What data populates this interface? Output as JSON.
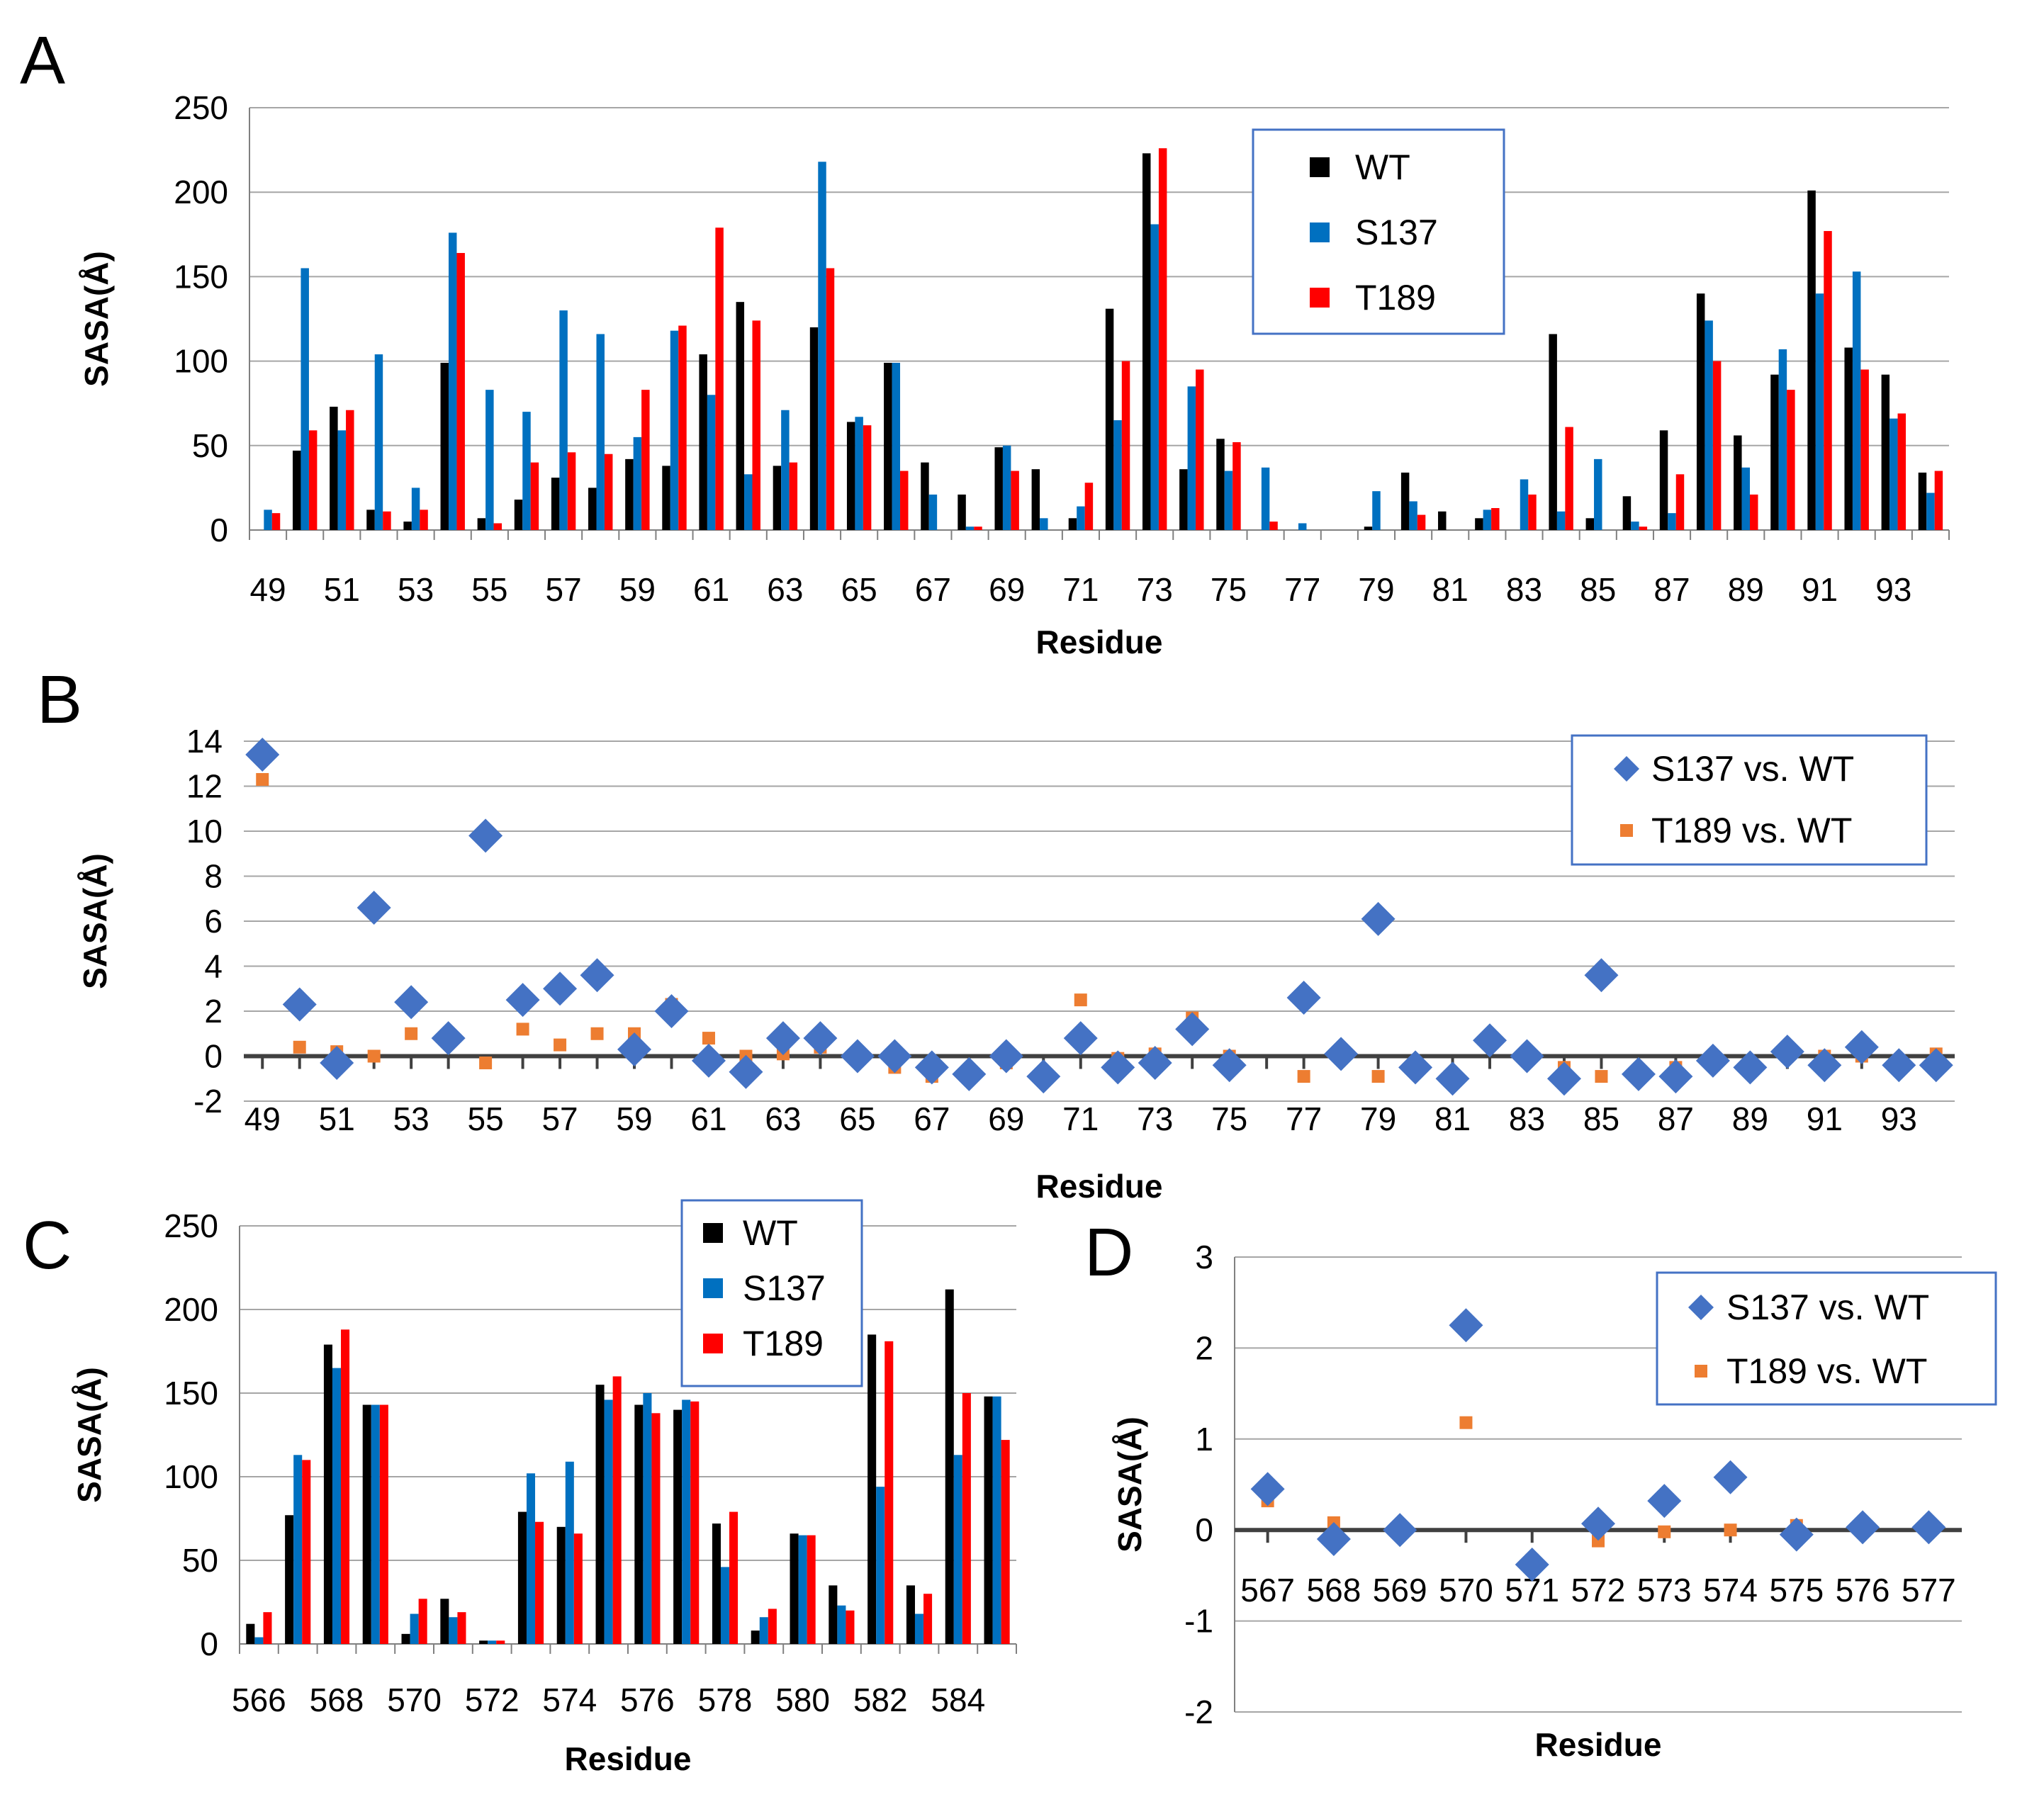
{
  "colors": {
    "WT": "#000000",
    "S137": "#0070C0",
    "T189": "#FF0000",
    "S137_vs_WT": "#4472C4",
    "T189_vs_WT": "#ED7D31",
    "gridline": "#A6A6A6",
    "legend_border": "#4472C4"
  },
  "chart_data": [
    {
      "panel": "A",
      "type": "bar",
      "xlabel": "Residue",
      "ylabel": "SASA(Å)",
      "ylim": [
        0,
        250
      ],
      "yticks": [
        0,
        50,
        100,
        150,
        200,
        250
      ],
      "xtick_labels": [
        "49",
        "51",
        "53",
        "55",
        "57",
        "59",
        "61",
        "63",
        "65",
        "67",
        "69",
        "71",
        "73",
        "75",
        "77",
        "79",
        "81",
        "83",
        "85",
        "87",
        "89",
        "91",
        "93"
      ],
      "categories": [
        49,
        50,
        51,
        52,
        53,
        54,
        55,
        56,
        57,
        58,
        59,
        60,
        61,
        62,
        63,
        64,
        65,
        66,
        67,
        68,
        69,
        70,
        71,
        72,
        73,
        74,
        75,
        76,
        77,
        78,
        79,
        80,
        81,
        82,
        83,
        84,
        85,
        86,
        87,
        88,
        89,
        90,
        91,
        92,
        93,
        94
      ],
      "legend": [
        "WT",
        "S137",
        "T189"
      ],
      "series": [
        {
          "name": "WT",
          "values": [
            0,
            47,
            73,
            12,
            5,
            99,
            7,
            18,
            31,
            25,
            42,
            38,
            104,
            135,
            38,
            120,
            64,
            99,
            40,
            21,
            49,
            36,
            7,
            131,
            223,
            36,
            54,
            0,
            0,
            0,
            2,
            34,
            11,
            7,
            0,
            116,
            7,
            20,
            59,
            140,
            56,
            92,
            201,
            108,
            92,
            34
          ]
        },
        {
          "name": "S137",
          "values": [
            12,
            155,
            59,
            104,
            25,
            176,
            83,
            70,
            130,
            116,
            55,
            118,
            80,
            33,
            71,
            218,
            67,
            99,
            21,
            2,
            50,
            7,
            14,
            65,
            181,
            85,
            35,
            37,
            4,
            0,
            23,
            17,
            0,
            12,
            30,
            11,
            42,
            5,
            10,
            124,
            37,
            107,
            140,
            153,
            66,
            22
          ]
        },
        {
          "name": "T189",
          "values": [
            10,
            59,
            71,
            11,
            12,
            164,
            4,
            40,
            46,
            45,
            83,
            121,
            179,
            124,
            40,
            155,
            62,
            35,
            0,
            2,
            35,
            0,
            28,
            100,
            226,
            95,
            52,
            5,
            0,
            0,
            0,
            9,
            0,
            13,
            21,
            61,
            0,
            2,
            33,
            100,
            21,
            83,
            177,
            95,
            69,
            35
          ]
        }
      ]
    },
    {
      "panel": "B",
      "type": "scatter",
      "xlabel": "Residue",
      "ylabel": "SASA(Å)",
      "ylim": [
        -2,
        14
      ],
      "yticks": [
        -2,
        0,
        2,
        4,
        6,
        8,
        10,
        12,
        14
      ],
      "xtick_labels": [
        "49",
        "51",
        "53",
        "55",
        "57",
        "59",
        "61",
        "63",
        "65",
        "67",
        "69",
        "71",
        "73",
        "75",
        "77",
        "79",
        "81",
        "83",
        "85",
        "87",
        "89",
        "91",
        "93"
      ],
      "x": [
        49,
        50,
        51,
        52,
        53,
        54,
        55,
        56,
        57,
        58,
        59,
        60,
        61,
        62,
        63,
        64,
        65,
        66,
        67,
        68,
        69,
        70,
        71,
        72,
        73,
        74,
        75,
        76,
        77,
        78,
        79,
        80,
        81,
        82,
        83,
        84,
        85,
        86,
        87,
        88,
        89,
        90,
        91,
        92,
        93,
        94
      ],
      "legend": [
        "S137 vs. WT",
        "T189 vs. WT"
      ],
      "series": [
        {
          "name": "S137 vs. WT",
          "marker": "diamond",
          "values": [
            13.4,
            2.3,
            -0.3,
            6.6,
            2.4,
            0.8,
            9.8,
            2.5,
            3.0,
            3.6,
            0.3,
            2.0,
            -0.2,
            -0.7,
            0.8,
            0.8,
            0.0,
            0.0,
            -0.5,
            -0.8,
            0.0,
            -0.9,
            0.8,
            -0.5,
            -0.3,
            1.2,
            -0.4,
            null,
            2.6,
            0.1,
            6.1,
            -0.5,
            -1.0,
            0.7,
            0.0,
            -1.0,
            3.6,
            -0.8,
            -0.9,
            -0.2,
            -0.5,
            0.2,
            -0.4,
            0.4,
            -0.4,
            -0.4
          ]
        },
        {
          "name": "T189 vs. WT",
          "marker": "square",
          "values": [
            12.3,
            0.4,
            0.2,
            0.0,
            1.0,
            0.8,
            -0.3,
            1.2,
            0.5,
            1.0,
            1.0,
            2.3,
            0.8,
            0.0,
            0.1,
            0.4,
            -0.1,
            -0.5,
            -0.9,
            -0.8,
            -0.3,
            -0.8,
            2.5,
            -0.1,
            0.1,
            1.7,
            0.0,
            null,
            -0.9,
            0.1,
            -0.9,
            -0.6,
            -0.9,
            0.7,
            0.1,
            -0.5,
            -0.9,
            -0.8,
            -0.5,
            -0.2,
            -0.5,
            0.0,
            0.0,
            0.0,
            -0.2,
            0.1
          ]
        }
      ]
    },
    {
      "panel": "C",
      "type": "bar",
      "xlabel": "Residue",
      "ylabel": "SASA(Å)",
      "ylim": [
        0,
        250
      ],
      "yticks": [
        0,
        50,
        100,
        150,
        200,
        250
      ],
      "xtick_labels": [
        "566",
        "568",
        "570",
        "572",
        "574",
        "576",
        "578",
        "580",
        "582",
        "584"
      ],
      "categories": [
        566,
        567,
        568,
        569,
        570,
        571,
        572,
        573,
        574,
        575,
        576,
        577,
        578,
        579,
        580,
        581,
        582,
        583,
        584,
        585
      ],
      "legend": [
        "WT",
        "S137",
        "T189"
      ],
      "series": [
        {
          "name": "WT",
          "values": [
            12,
            77,
            179,
            143,
            6,
            27,
            2,
            79,
            70,
            155,
            143,
            140,
            72,
            8,
            66,
            35,
            185,
            35,
            212,
            148
          ]
        },
        {
          "name": "S137",
          "values": [
            4,
            113,
            165,
            143,
            18,
            16,
            2,
            102,
            109,
            146,
            150,
            146,
            46,
            16,
            65,
            23,
            94,
            18,
            113,
            148
          ]
        },
        {
          "name": "T189",
          "values": [
            19,
            110,
            188,
            143,
            27,
            19,
            2,
            73,
            66,
            160,
            138,
            145,
            79,
            21,
            65,
            20,
            181,
            30,
            150,
            122
          ]
        }
      ]
    },
    {
      "panel": "D",
      "type": "scatter",
      "xlabel": "Residue",
      "ylabel": "SASA(Å)",
      "ylim": [
        -2,
        3
      ],
      "yticks": [
        -2,
        -1,
        0,
        1,
        2,
        3
      ],
      "xtick_labels": [
        "567",
        "568",
        "569",
        "570",
        "571",
        "572",
        "573",
        "574",
        "575",
        "576",
        "577"
      ],
      "x": [
        567,
        568,
        569,
        570,
        571,
        572,
        573,
        574,
        575,
        576,
        577
      ],
      "legend": [
        "S137 vs. WT",
        "T189 vs. WT"
      ],
      "series": [
        {
          "name": "S137 vs. WT",
          "marker": "diamond",
          "values": [
            0.45,
            -0.1,
            0.0,
            2.25,
            -0.38,
            0.07,
            0.32,
            0.58,
            -0.05,
            0.03,
            0.03
          ]
        },
        {
          "name": "T189 vs. WT",
          "marker": "square",
          "values": [
            0.32,
            0.08,
            0.02,
            1.18,
            -0.33,
            -0.12,
            -0.02,
            0.0,
            0.05,
            0.02,
            0.05
          ]
        }
      ]
    }
  ]
}
